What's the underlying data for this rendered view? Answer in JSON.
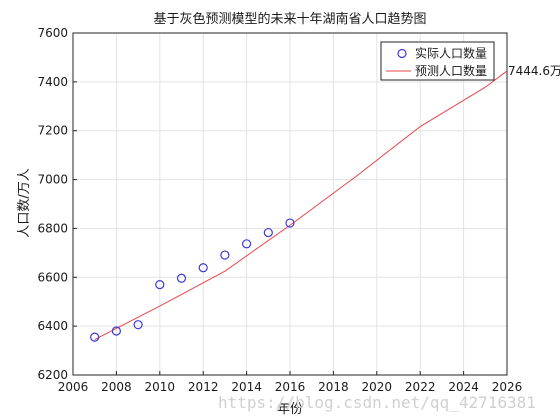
{
  "chart_data": {
    "type": "line",
    "title": "基于灰色预测模型的未来十年湖南省人口趋势图",
    "xlabel": "年份",
    "ylabel": "人口数/万人",
    "xlim": [
      2006,
      2026
    ],
    "ylim": [
      6200,
      7600
    ],
    "xticks": [
      2006,
      2008,
      2010,
      2012,
      2014,
      2016,
      2018,
      2020,
      2022,
      2024,
      2026
    ],
    "yticks": [
      6200,
      6400,
      6600,
      6800,
      7000,
      7200,
      7400,
      7600
    ],
    "grid": true,
    "legend_position": "top-right",
    "series": [
      {
        "name": "实际人口数量",
        "kind": "scatter",
        "marker": "circle-open",
        "color": "#3a3ad6",
        "x": [
          2007,
          2008,
          2009,
          2010,
          2011,
          2012,
          2013,
          2014,
          2015,
          2016
        ],
        "y": [
          6355,
          6380,
          6406,
          6570,
          6596,
          6639,
          6691,
          6737,
          6783,
          6822
        ]
      },
      {
        "name": "预测人口数量",
        "kind": "line",
        "color": "#e8454a",
        "x": [
          2007,
          2010,
          2013,
          2016,
          2019,
          2022,
          2025,
          2026
        ],
        "y": [
          6345,
          6482,
          6625,
          6813,
          7010,
          7217,
          7378,
          7444.6
        ]
      }
    ],
    "annotation": {
      "text": "7444.6万",
      "x": 2026,
      "y": 7444.6
    }
  },
  "watermark": "https://blog.csdn.net/qq_42716381"
}
